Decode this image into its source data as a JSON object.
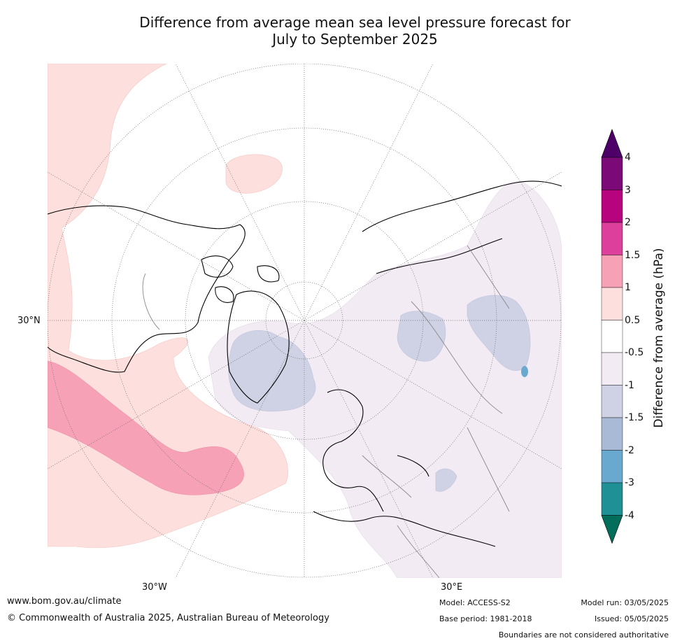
{
  "title_line1": "Difference from average mean sea level pressure forecast for",
  "title_line2": "July to September 2025",
  "map": {
    "projection": "north-polar-stereographic",
    "lon_labels": [
      "30°N",
      "30°W",
      "30°E"
    ],
    "graticule": "dotted"
  },
  "colorbar": {
    "title": "Difference from average (hPa)",
    "tick_labels": [
      "4",
      "3",
      "2",
      "1.5",
      "1",
      "0.5",
      "-0.5",
      "-1",
      "-1.5",
      "-2",
      "-3",
      "-4"
    ],
    "band_colors": [
      "#7b0a78",
      "#b8037e",
      "#dc3f9c",
      "#f7a1b7",
      "#fde0dd",
      "#ffffff",
      "#f2ebf3",
      "#cfd1e4",
      "#a9bad6",
      "#69a8cf",
      "#1f9096"
    ],
    "extend_max_color": "#4c0068",
    "extend_min_color": "#006e5a",
    "extend": "both"
  },
  "footer": {
    "url": "www.bom.gov.au/climate",
    "copyright": "© Commonwealth of Australia 2025, Australian Bureau of Meteorology",
    "model": "Model: ACCESS-S2",
    "base_period": "Base period: 1981-2018",
    "model_run": "Model run: 03/05/2025",
    "issued": "Issued: 05/05/2025",
    "disclaimer": "Boundaries are not considered authoritative"
  }
}
